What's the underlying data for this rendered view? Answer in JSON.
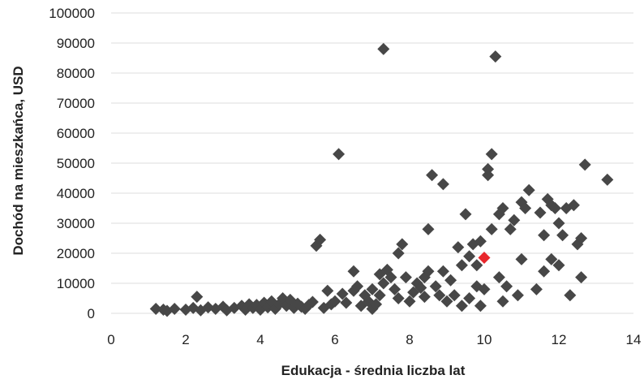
{
  "chart_data": {
    "type": "scatter",
    "title": "",
    "xlabel": "Edukacja - średnia liczba lat",
    "ylabel": "Dochód na mieszkańca, USD",
    "xlim": [
      0,
      14
    ],
    "ylim": [
      0,
      100000
    ],
    "xticks": [
      0,
      2,
      4,
      6,
      8,
      10,
      12,
      14
    ],
    "yticks": [
      0,
      10000,
      20000,
      30000,
      40000,
      50000,
      60000,
      70000,
      80000,
      90000,
      100000
    ],
    "x_tick_labels": [
      "0",
      "2",
      "4",
      "6",
      "8",
      "10",
      "12",
      "14"
    ],
    "y_tick_labels": [
      "0",
      "10000",
      "20000",
      "30000",
      "40000",
      "50000",
      "60000",
      "70000",
      "80000",
      "90000",
      "100000"
    ],
    "grid": "horizontal",
    "marker": "diamond",
    "colors": {
      "points": "#474747",
      "highlight": "#e8262b",
      "grid": "#dddddd",
      "text": "#222222"
    },
    "highlight": {
      "x": 10.0,
      "y": 18500
    },
    "points": [
      [
        1.2,
        1500
      ],
      [
        1.4,
        1200
      ],
      [
        1.5,
        800
      ],
      [
        1.7,
        1500
      ],
      [
        2.0,
        1200
      ],
      [
        2.2,
        1800
      ],
      [
        2.3,
        5500
      ],
      [
        2.4,
        1000
      ],
      [
        2.6,
        2000
      ],
      [
        2.8,
        1500
      ],
      [
        3.0,
        2200
      ],
      [
        3.1,
        1000
      ],
      [
        3.3,
        1800
      ],
      [
        3.5,
        2500
      ],
      [
        3.6,
        1200
      ],
      [
        3.7,
        3000
      ],
      [
        3.8,
        1800
      ],
      [
        3.9,
        2800
      ],
      [
        4.0,
        1200
      ],
      [
        4.1,
        3500
      ],
      [
        4.2,
        2000
      ],
      [
        4.3,
        4000
      ],
      [
        4.4,
        1500
      ],
      [
        4.5,
        3000
      ],
      [
        4.6,
        5000
      ],
      [
        4.7,
        2500
      ],
      [
        4.8,
        4500
      ],
      [
        4.9,
        1800
      ],
      [
        5.0,
        3200
      ],
      [
        5.1,
        2200
      ],
      [
        5.2,
        1500
      ],
      [
        5.3,
        2800
      ],
      [
        5.4,
        3800
      ],
      [
        5.5,
        22500
      ],
      [
        5.6,
        24500
      ],
      [
        5.7,
        1800
      ],
      [
        5.8,
        7500
      ],
      [
        5.9,
        3000
      ],
      [
        6.0,
        4000
      ],
      [
        6.1,
        53000
      ],
      [
        6.2,
        6500
      ],
      [
        6.3,
        3500
      ],
      [
        6.5,
        7500
      ],
      [
        6.5,
        14000
      ],
      [
        6.6,
        9000
      ],
      [
        6.7,
        2500
      ],
      [
        6.8,
        6000
      ],
      [
        6.9,
        4000
      ],
      [
        7.0,
        1500
      ],
      [
        7.0,
        8000
      ],
      [
        7.1,
        3000
      ],
      [
        7.2,
        6000
      ],
      [
        7.2,
        13000
      ],
      [
        7.3,
        88000
      ],
      [
        7.3,
        10000
      ],
      [
        7.4,
        14500
      ],
      [
        7.5,
        12000
      ],
      [
        7.6,
        8000
      ],
      [
        7.7,
        5000
      ],
      [
        7.7,
        20000
      ],
      [
        7.8,
        23000
      ],
      [
        7.9,
        12000
      ],
      [
        8.0,
        4000
      ],
      [
        8.1,
        7000
      ],
      [
        8.2,
        10000
      ],
      [
        8.3,
        8500
      ],
      [
        8.4,
        12000
      ],
      [
        8.4,
        5500
      ],
      [
        8.5,
        28000
      ],
      [
        8.5,
        14000
      ],
      [
        8.6,
        46000
      ],
      [
        8.7,
        9000
      ],
      [
        8.8,
        6000
      ],
      [
        8.9,
        43000
      ],
      [
        8.9,
        14000
      ],
      [
        9.0,
        4000
      ],
      [
        9.1,
        11000
      ],
      [
        9.2,
        6000
      ],
      [
        9.3,
        22000
      ],
      [
        9.4,
        2500
      ],
      [
        9.4,
        16000
      ],
      [
        9.5,
        33000
      ],
      [
        9.6,
        19000
      ],
      [
        9.6,
        5000
      ],
      [
        9.7,
        23000
      ],
      [
        9.8,
        9000
      ],
      [
        9.8,
        16000
      ],
      [
        9.9,
        2500
      ],
      [
        9.9,
        24000
      ],
      [
        10.0,
        8000
      ],
      [
        10.1,
        46000
      ],
      [
        10.1,
        48000
      ],
      [
        10.2,
        53000
      ],
      [
        10.2,
        28000
      ],
      [
        10.3,
        85500
      ],
      [
        10.4,
        33000
      ],
      [
        10.4,
        12000
      ],
      [
        10.5,
        35000
      ],
      [
        10.5,
        4000
      ],
      [
        10.6,
        9000
      ],
      [
        10.7,
        28000
      ],
      [
        10.8,
        31000
      ],
      [
        10.9,
        6000
      ],
      [
        11.0,
        37000
      ],
      [
        11.0,
        18000
      ],
      [
        11.1,
        35000
      ],
      [
        11.2,
        41000
      ],
      [
        11.4,
        8000
      ],
      [
        11.5,
        33500
      ],
      [
        11.6,
        14000
      ],
      [
        11.6,
        26000
      ],
      [
        11.7,
        38000
      ],
      [
        11.8,
        36000
      ],
      [
        11.8,
        18000
      ],
      [
        11.9,
        35000
      ],
      [
        12.0,
        30000
      ],
      [
        12.0,
        16000
      ],
      [
        12.1,
        26000
      ],
      [
        12.2,
        35000
      ],
      [
        12.3,
        6000
      ],
      [
        12.4,
        36000
      ],
      [
        12.5,
        23000
      ],
      [
        12.6,
        25000
      ],
      [
        12.7,
        49500
      ],
      [
        12.6,
        12000
      ],
      [
        13.3,
        44500
      ]
    ]
  }
}
